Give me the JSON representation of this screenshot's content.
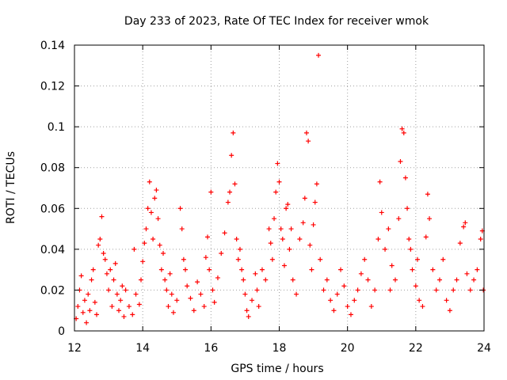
{
  "chart_data": {
    "type": "scatter",
    "title": "Day 233 of 2023, Rate Of TEC Index for receiver wmok",
    "xlabel": "GPS time / hours",
    "ylabel": "ROTI / TECUs",
    "xlim": [
      12,
      24
    ],
    "ylim": [
      0,
      0.14
    ],
    "xticks": [
      "12",
      "14",
      "16",
      "18",
      "20",
      "22",
      "24"
    ],
    "yticks": [
      "0",
      "0.02",
      "0.04",
      "0.06",
      "0.08",
      "0.1",
      "0.12",
      "0.14"
    ],
    "grid": true,
    "marker": "plus",
    "color": "#ff0000",
    "series": [
      {
        "points": [
          [
            12.05,
            0.006
          ],
          [
            12.1,
            0.012
          ],
          [
            12.15,
            0.02
          ],
          [
            12.2,
            0.027
          ],
          [
            12.25,
            0.009
          ],
          [
            12.3,
            0.015
          ],
          [
            12.35,
            0.004
          ],
          [
            12.4,
            0.018
          ],
          [
            12.45,
            0.01
          ],
          [
            12.5,
            0.025
          ],
          [
            12.55,
            0.03
          ],
          [
            12.6,
            0.014
          ],
          [
            12.65,
            0.008
          ],
          [
            12.7,
            0.042
          ],
          [
            12.75,
            0.045
          ],
          [
            12.8,
            0.056
          ],
          [
            12.85,
            0.038
          ],
          [
            12.9,
            0.035
          ],
          [
            12.95,
            0.028
          ],
          [
            13.0,
            0.02
          ],
          [
            13.05,
            0.03
          ],
          [
            13.1,
            0.012
          ],
          [
            13.15,
            0.025
          ],
          [
            13.2,
            0.033
          ],
          [
            13.25,
            0.018
          ],
          [
            13.3,
            0.01
          ],
          [
            13.35,
            0.015
          ],
          [
            13.4,
            0.022
          ],
          [
            13.45,
            0.007
          ],
          [
            13.5,
            0.02
          ],
          [
            13.6,
            0.012
          ],
          [
            13.7,
            0.008
          ],
          [
            13.75,
            0.04
          ],
          [
            13.8,
            0.018
          ],
          [
            13.9,
            0.013
          ],
          [
            13.95,
            0.025
          ],
          [
            14.0,
            0.034
          ],
          [
            14.05,
            0.043
          ],
          [
            14.1,
            0.05
          ],
          [
            14.15,
            0.06
          ],
          [
            14.2,
            0.073
          ],
          [
            14.25,
            0.058
          ],
          [
            14.3,
            0.045
          ],
          [
            14.35,
            0.065
          ],
          [
            14.4,
            0.069
          ],
          [
            14.45,
            0.055
          ],
          [
            14.5,
            0.042
          ],
          [
            14.55,
            0.03
          ],
          [
            14.6,
            0.038
          ],
          [
            14.65,
            0.025
          ],
          [
            14.7,
            0.02
          ],
          [
            14.75,
            0.012
          ],
          [
            14.8,
            0.028
          ],
          [
            14.85,
            0.018
          ],
          [
            14.9,
            0.009
          ],
          [
            15.0,
            0.015
          ],
          [
            15.1,
            0.06
          ],
          [
            15.15,
            0.05
          ],
          [
            15.2,
            0.035
          ],
          [
            15.25,
            0.03
          ],
          [
            15.3,
            0.022
          ],
          [
            15.4,
            0.016
          ],
          [
            15.5,
            0.01
          ],
          [
            15.6,
            0.024
          ],
          [
            15.7,
            0.018
          ],
          [
            15.8,
            0.012
          ],
          [
            15.85,
            0.036
          ],
          [
            15.9,
            0.046
          ],
          [
            15.95,
            0.03
          ],
          [
            16.0,
            0.068
          ],
          [
            16.05,
            0.02
          ],
          [
            16.1,
            0.014
          ],
          [
            16.2,
            0.026
          ],
          [
            16.3,
            0.038
          ],
          [
            16.4,
            0.048
          ],
          [
            16.5,
            0.063
          ],
          [
            16.55,
            0.068
          ],
          [
            16.6,
            0.086
          ],
          [
            16.65,
            0.097
          ],
          [
            16.7,
            0.072
          ],
          [
            16.75,
            0.045
          ],
          [
            16.8,
            0.035
          ],
          [
            16.85,
            0.04
          ],
          [
            16.9,
            0.03
          ],
          [
            16.95,
            0.025
          ],
          [
            17.0,
            0.018
          ],
          [
            17.05,
            0.01
          ],
          [
            17.1,
            0.007
          ],
          [
            17.2,
            0.015
          ],
          [
            17.3,
            0.028
          ],
          [
            17.35,
            0.02
          ],
          [
            17.4,
            0.012
          ],
          [
            17.5,
            0.03
          ],
          [
            17.6,
            0.025
          ],
          [
            17.7,
            0.05
          ],
          [
            17.75,
            0.043
          ],
          [
            17.8,
            0.035
          ],
          [
            17.85,
            0.055
          ],
          [
            17.9,
            0.068
          ],
          [
            17.95,
            0.082
          ],
          [
            18.0,
            0.073
          ],
          [
            18.05,
            0.05
          ],
          [
            18.1,
            0.045
          ],
          [
            18.15,
            0.032
          ],
          [
            18.2,
            0.06
          ],
          [
            18.25,
            0.062
          ],
          [
            18.3,
            0.04
          ],
          [
            18.35,
            0.05
          ],
          [
            18.4,
            0.025
          ],
          [
            18.5,
            0.018
          ],
          [
            18.6,
            0.045
          ],
          [
            18.7,
            0.053
          ],
          [
            18.75,
            0.065
          ],
          [
            18.8,
            0.097
          ],
          [
            18.85,
            0.093
          ],
          [
            18.9,
            0.042
          ],
          [
            18.95,
            0.03
          ],
          [
            19.0,
            0.052
          ],
          [
            19.05,
            0.063
          ],
          [
            19.1,
            0.072
          ],
          [
            19.15,
            0.135
          ],
          [
            19.2,
            0.035
          ],
          [
            19.3,
            0.02
          ],
          [
            19.4,
            0.025
          ],
          [
            19.5,
            0.015
          ],
          [
            19.6,
            0.01
          ],
          [
            19.7,
            0.018
          ],
          [
            19.8,
            0.03
          ],
          [
            19.9,
            0.022
          ],
          [
            20.0,
            0.012
          ],
          [
            20.1,
            0.008
          ],
          [
            20.2,
            0.015
          ],
          [
            20.3,
            0.02
          ],
          [
            20.4,
            0.028
          ],
          [
            20.5,
            0.035
          ],
          [
            20.6,
            0.025
          ],
          [
            20.7,
            0.012
          ],
          [
            20.8,
            0.02
          ],
          [
            20.9,
            0.045
          ],
          [
            20.95,
            0.073
          ],
          [
            21.0,
            0.058
          ],
          [
            21.1,
            0.04
          ],
          [
            21.2,
            0.05
          ],
          [
            21.3,
            0.032
          ],
          [
            21.4,
            0.025
          ],
          [
            21.5,
            0.055
          ],
          [
            21.55,
            0.083
          ],
          [
            21.6,
            0.099
          ],
          [
            21.65,
            0.097
          ],
          [
            21.7,
            0.075
          ],
          [
            21.75,
            0.06
          ],
          [
            21.8,
            0.045
          ],
          [
            21.85,
            0.04
          ],
          [
            21.9,
            0.03
          ],
          [
            22.0,
            0.022
          ],
          [
            22.1,
            0.015
          ],
          [
            22.2,
            0.012
          ],
          [
            22.3,
            0.046
          ],
          [
            22.35,
            0.067
          ],
          [
            22.4,
            0.055
          ],
          [
            22.5,
            0.03
          ],
          [
            22.6,
            0.02
          ],
          [
            22.7,
            0.025
          ],
          [
            22.8,
            0.035
          ],
          [
            22.9,
            0.015
          ],
          [
            23.0,
            0.01
          ],
          [
            23.1,
            0.02
          ],
          [
            23.2,
            0.025
          ],
          [
            23.3,
            0.043
          ],
          [
            23.4,
            0.051
          ],
          [
            23.45,
            0.053
          ],
          [
            23.5,
            0.028
          ],
          [
            23.6,
            0.02
          ],
          [
            23.7,
            0.025
          ],
          [
            23.8,
            0.03
          ],
          [
            23.9,
            0.045
          ],
          [
            23.95,
            0.049
          ],
          [
            23.98,
            0.02
          ],
          [
            22.05,
            0.035
          ],
          [
            21.25,
            0.02
          ]
        ]
      }
    ]
  }
}
